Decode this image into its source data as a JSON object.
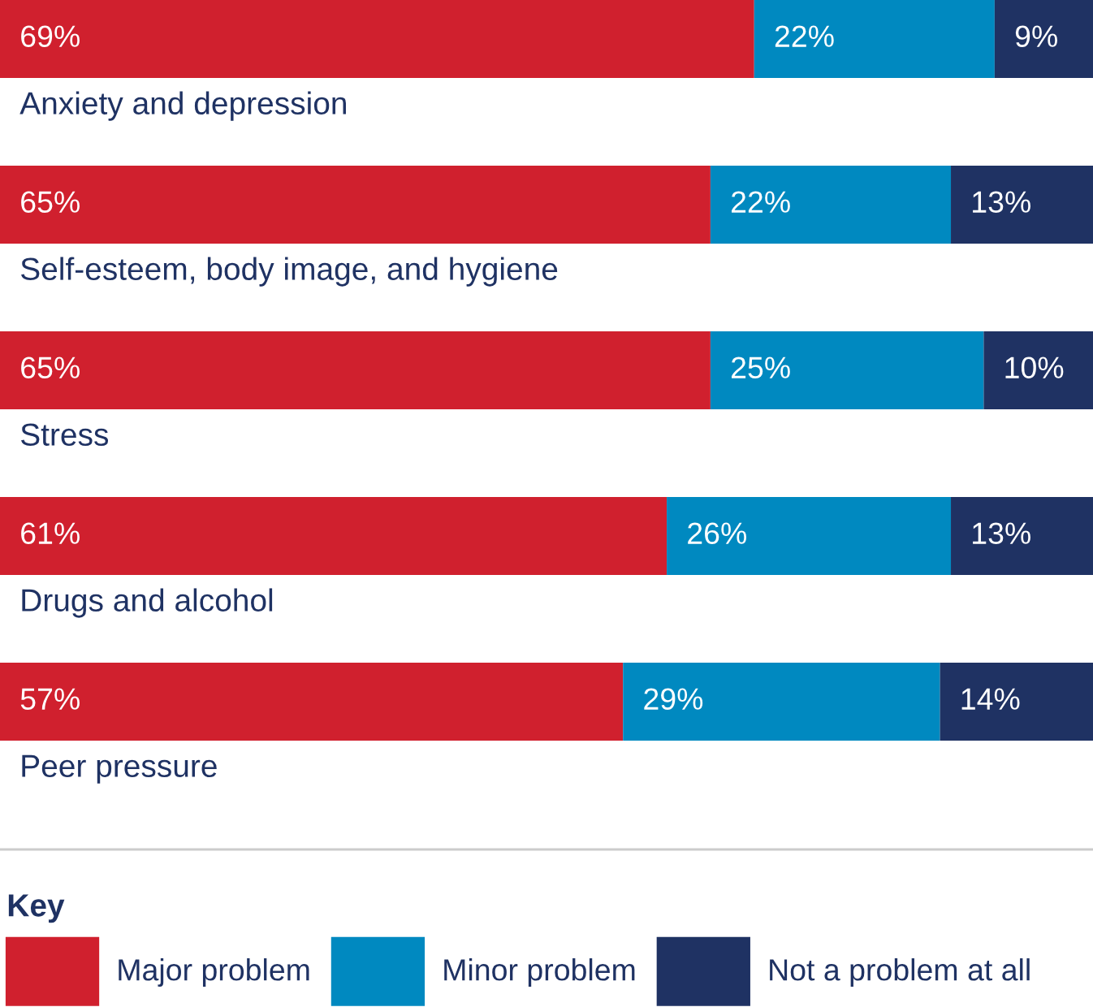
{
  "chart_data": {
    "type": "bar",
    "orientation": "horizontal",
    "stacked": true,
    "categories": [
      "Anxiety and depression",
      "Self-esteem, body image, and hygiene",
      "Stress",
      "Drugs and alcohol",
      "Peer pressure"
    ],
    "series": [
      {
        "name": "Major problem",
        "color": "#d0202e",
        "values": [
          69,
          65,
          65,
          61,
          57
        ],
        "value_labels": [
          "69%",
          "65%",
          "65%",
          "61%",
          "57%"
        ]
      },
      {
        "name": "Minor problem",
        "color": "#0089c0",
        "values": [
          22,
          22,
          25,
          26,
          29
        ],
        "value_labels": [
          "22%",
          "22%",
          "25%",
          "26%",
          "29%"
        ]
      },
      {
        "name": "Not a problem at all",
        "color": "#1f3263",
        "values": [
          9,
          13,
          10,
          13,
          14
        ],
        "value_labels": [
          "9%",
          "13%",
          "10%",
          "13%",
          "14%"
        ]
      }
    ],
    "legend": "bottom",
    "legend_title": "Key"
  }
}
